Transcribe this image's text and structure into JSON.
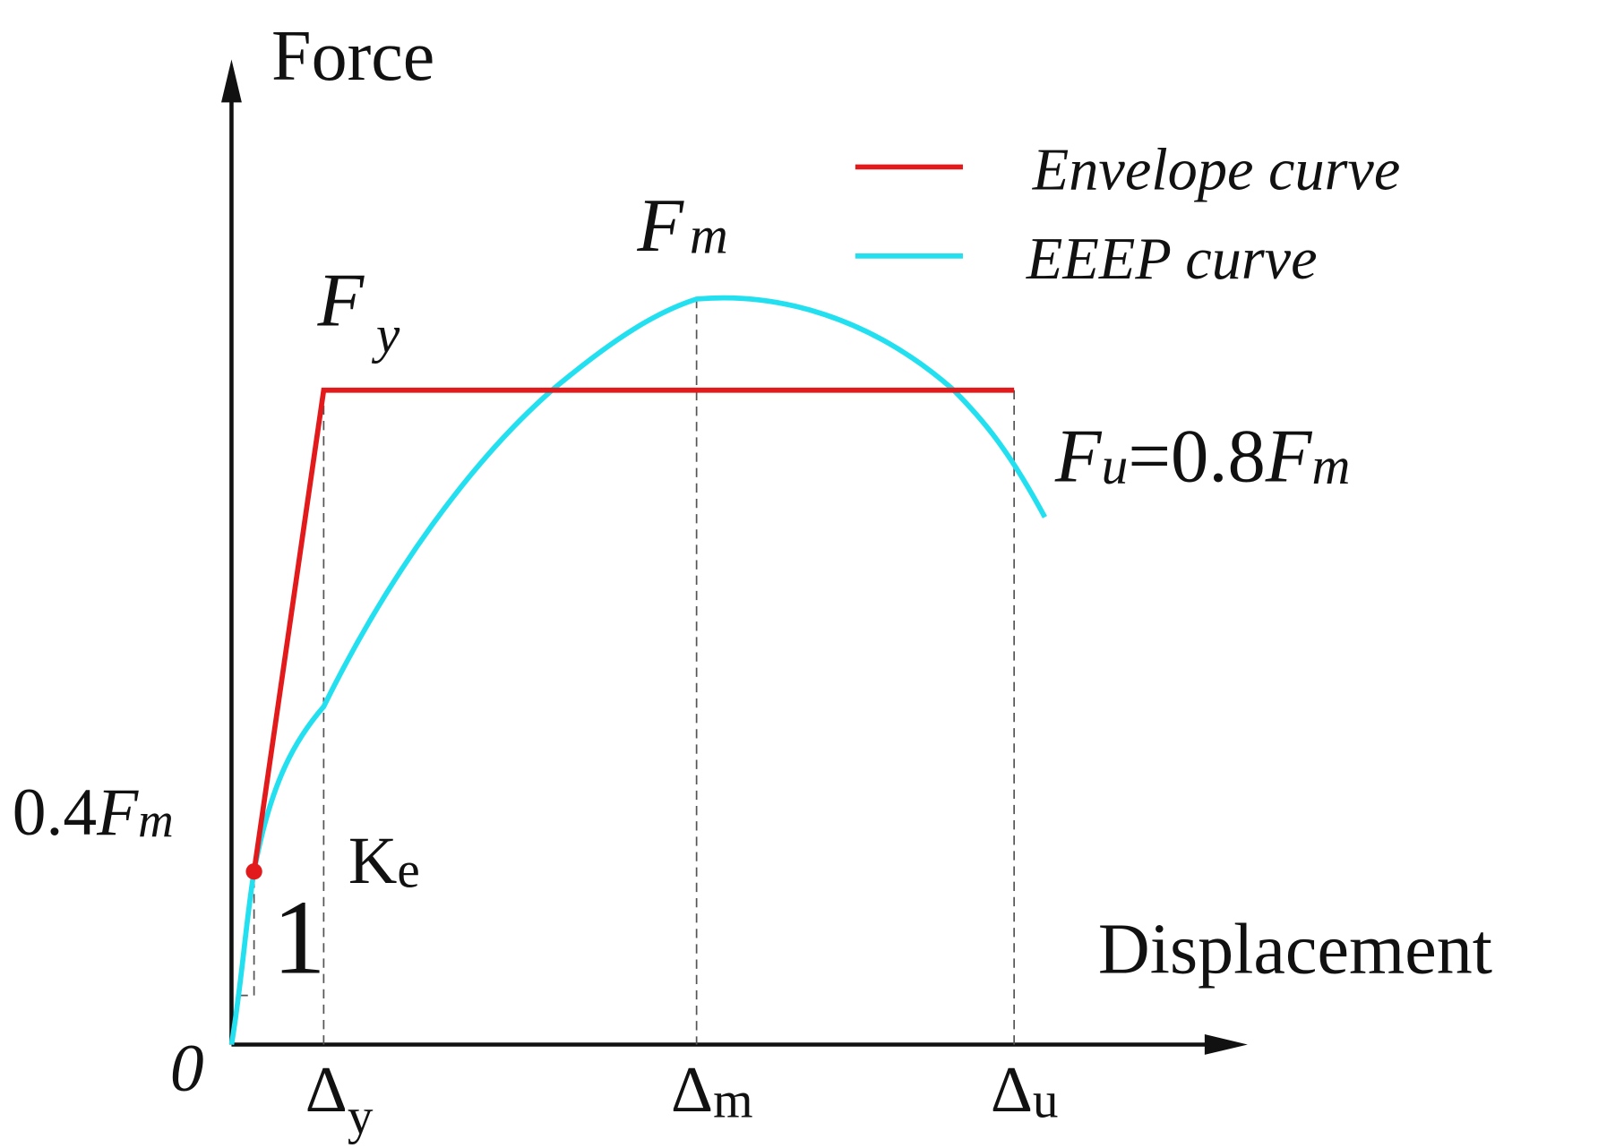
{
  "axes": {
    "y_label": "Force",
    "x_label": "Displacement",
    "origin": "0"
  },
  "legend": [
    {
      "label": "Envelope curve",
      "color": "#e31a1c"
    },
    {
      "label": "EEEP curve",
      "color": "#22e0f0"
    }
  ],
  "points": {
    "fm": {
      "main": "F",
      "sub": "m"
    },
    "fy": {
      "main": "F",
      "sub": "y"
    },
    "fu": {
      "main": "F",
      "sub": "u",
      "eq": "=0.8",
      "main2": "F",
      "sub2": "m"
    },
    "f04": {
      "coef": "0.4",
      "main": "F",
      "sub": "m"
    },
    "ke": {
      "main": "K",
      "sub": "e"
    },
    "slope": "1"
  },
  "x_marks": {
    "dy": {
      "main": "Δ",
      "sub": "y"
    },
    "dm": {
      "main": "Δ",
      "sub": "m"
    },
    "du": {
      "main": "Δ",
      "sub": "u"
    }
  }
}
